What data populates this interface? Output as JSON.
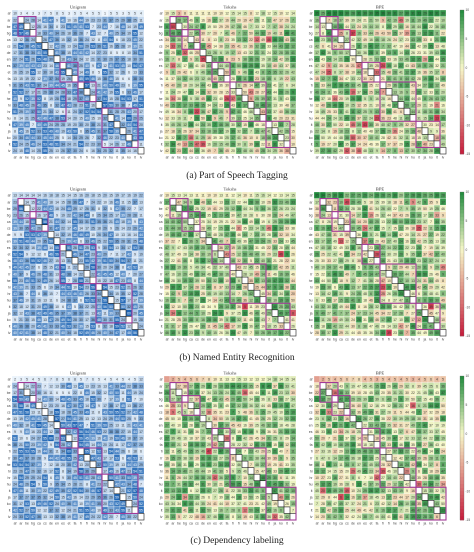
{
  "rows": [
    "af",
    "ar",
    "be",
    "bg",
    "ca",
    "cs",
    "de",
    "en",
    "es",
    "et",
    "fa",
    "fi",
    "fr",
    "he",
    "hi",
    "hr",
    "hu",
    "it",
    "ja",
    "ko",
    "lt",
    "lv"
  ],
  "cols": [
    "af",
    "ar",
    "be",
    "bg",
    "ca",
    "cs",
    "de",
    "en",
    "es",
    "et",
    "fa",
    "fi",
    "fr",
    "he",
    "hi",
    "hr",
    "hu",
    "it",
    "ja",
    "ko",
    "lt",
    "lv"
  ],
  "colors": {
    "blue_low": "#eef5fc",
    "blue_high": "#1c64b4",
    "diverge_low": "#c51b3b",
    "diverge_mid": "#f6f7c8",
    "diverge_high": "#1f8a3c",
    "box_outline": "#a23a98",
    "diagonal_outline": "#1a1a1a"
  },
  "colorbar_ticks": [
    "10",
    "5",
    "0",
    "-5",
    "-10",
    "-15"
  ],
  "panels": [
    {
      "caption": "(a) Part of Speech Tagging",
      "chart_data": [
        {
          "type": "heatmap",
          "title": "Unigram",
          "colormap": "sequential-blue",
          "seed": 11,
          "vmin": 1,
          "vmax": 60,
          "first_row": [
            "10",
            "3",
            "4",
            "3",
            "3",
            "7",
            "5",
            "8",
            "5",
            "3",
            "5",
            "5",
            "4",
            "5",
            "5",
            "1",
            "5",
            "5",
            "3",
            "5",
            "5",
            "4"
          ],
          "boxes": [
            [
              1,
              3,
              1,
              3
            ],
            [
              8,
              10,
              8,
              10
            ],
            [
              11,
              13,
              11,
              13
            ],
            [
              12,
              16,
              4,
              8
            ],
            [
              15,
              20,
              15,
              20
            ]
          ]
        },
        {
          "type": "heatmap",
          "title": "Tokshs",
          "colormap": "diverging",
          "seed": 23,
          "vmin": -15,
          "vmax": 10,
          "first_row": [
            "10",
            "15",
            "3",
            "8",
            "11",
            "11",
            "11",
            "11",
            "10",
            "10",
            "12",
            "15",
            "14",
            "15",
            "8",
            "12",
            "18",
            "12",
            "15",
            "10",
            "12",
            "14"
          ],
          "boxes": [
            [
              1,
              3,
              1,
              3
            ],
            [
              3,
              5,
              3,
              5
            ],
            [
              8,
              10,
              8,
              10
            ],
            [
              11,
              16,
              11,
              16
            ],
            [
              17,
              20,
              17,
              20
            ]
          ]
        },
        {
          "type": "heatmap",
          "title": "BPE",
          "colormap": "diverging",
          "seed": 37,
          "vmin": -15,
          "vmax": 10,
          "first_row": [
            "35",
            "25",
            "40",
            "32",
            "33",
            "30",
            "28",
            "31",
            "30",
            "30",
            "35",
            "36",
            "30",
            "31",
            "27",
            "30",
            "31",
            "33",
            "29",
            "32",
            "31",
            "30"
          ],
          "boxes": [
            [
              1,
              3,
              1,
              3
            ],
            [
              3,
              5,
              3,
              5
            ],
            [
              8,
              10,
              8,
              10
            ],
            [
              11,
              16,
              11,
              16
            ],
            [
              17,
              20,
              17,
              20
            ]
          ]
        }
      ]
    },
    {
      "caption": "(b) Named Entity Recognition",
      "chart_data": [
        {
          "type": "heatmap",
          "title": "Unigram",
          "colormap": "sequential-blue",
          "seed": 53,
          "vmin": 1,
          "vmax": 60,
          "first_row": [
            "13",
            "14",
            "14",
            "14",
            "14",
            "16",
            "18",
            "18",
            "15",
            "14",
            "15",
            "16",
            "20",
            "18",
            "15",
            "20",
            "15",
            "19",
            "17",
            "16",
            "19",
            "22"
          ],
          "boxes": [
            [
              1,
              3,
              1,
              3
            ],
            [
              3,
              5,
              3,
              5
            ],
            [
              8,
              13,
              8,
              13
            ],
            [
              14,
              19,
              14,
              19
            ]
          ]
        },
        {
          "type": "heatmap",
          "title": "Tokshs",
          "colormap": "diverging",
          "seed": 61,
          "vmin": -15,
          "vmax": 10,
          "first_row": [
            "10",
            "15",
            "13",
            "14",
            "13",
            "11",
            "11",
            "10",
            "10",
            "13",
            "11",
            "12",
            "14",
            "10",
            "11",
            "15",
            "16",
            "14",
            "12",
            "13",
            "14",
            "15"
          ],
          "boxes": [
            [
              1,
              3,
              1,
              3
            ],
            [
              3,
              5,
              3,
              5
            ],
            [
              8,
              10,
              8,
              10
            ],
            [
              11,
              16,
              11,
              16
            ],
            [
              17,
              20,
              17,
              20
            ]
          ]
        },
        {
          "type": "heatmap",
          "title": "BPE",
          "colormap": "diverging",
          "seed": 79,
          "vmin": -15,
          "vmax": 10,
          "first_row": [
            "35",
            "34",
            "25",
            "30",
            "35",
            "22",
            "27",
            "25",
            "29",
            "24",
            "29",
            "28",
            "25",
            "30",
            "20",
            "27",
            "28",
            "29",
            "26",
            "25",
            "30",
            "28"
          ],
          "boxes": [
            [
              1,
              3,
              1,
              3
            ],
            [
              3,
              5,
              3,
              5
            ],
            [
              8,
              10,
              8,
              10
            ],
            [
              11,
              16,
              11,
              16
            ],
            [
              17,
              20,
              17,
              20
            ]
          ]
        }
      ]
    },
    {
      "caption": "(c) Dependency labeling",
      "chart_data": [
        {
          "type": "heatmap",
          "title": "Unigram",
          "colormap": "sequential-blue",
          "seed": 97,
          "vmin": 1,
          "vmax": 60,
          "first_row": [
            "2",
            "3",
            "5",
            "4",
            "5",
            "6",
            "7",
            "8",
            "5",
            "6",
            "8",
            "5",
            "7",
            "6",
            "5",
            "4",
            "5",
            "4",
            "5",
            "4",
            "5",
            "12"
          ],
          "boxes": [
            [
              1,
              3,
              1,
              3
            ],
            [
              8,
              10,
              8,
              10
            ],
            [
              11,
              14,
              11,
              14
            ],
            [
              15,
              20,
              15,
              20
            ]
          ]
        },
        {
          "type": "heatmap",
          "title": "Tokshs",
          "colormap": "diverging",
          "seed": 103,
          "vmin": -15,
          "vmax": 10,
          "first_row": [
            "",
            "2",
            "5",
            "4",
            "5",
            "6",
            "7",
            "8",
            "10",
            "11",
            "13",
            "12",
            "15",
            "13",
            "12",
            "13",
            "12",
            "14",
            "18",
            "14",
            "15",
            "14"
          ],
          "boxes": [
            [
              1,
              3,
              1,
              3
            ],
            [
              3,
              5,
              3,
              5
            ],
            [
              8,
              10,
              8,
              10
            ],
            [
              11,
              16,
              11,
              16
            ],
            [
              17,
              21,
              17,
              21
            ]
          ]
        },
        {
          "type": "heatmap",
          "title": "BPE",
          "colormap": "diverging",
          "seed": 109,
          "vmin": -15,
          "vmax": 10,
          "first_row": [
            "",
            "2",
            "5",
            "4",
            "5",
            "6",
            "7",
            "8",
            "4",
            "5",
            "3",
            "5",
            "4",
            "5",
            "4",
            "5",
            "3",
            "4",
            "5",
            "6",
            "4",
            "5"
          ],
          "boxes": [
            [
              1,
              3,
              1,
              3
            ],
            [
              3,
              5,
              3,
              5
            ],
            [
              8,
              10,
              8,
              10
            ],
            [
              11,
              16,
              11,
              16
            ],
            [
              17,
              21,
              17,
              21
            ]
          ]
        }
      ]
    }
  ]
}
